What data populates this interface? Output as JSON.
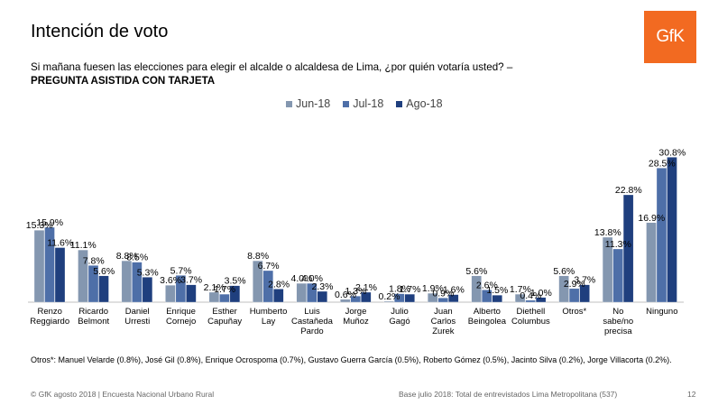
{
  "header": {
    "title": "Intención de voto",
    "logo_text": "GfK",
    "question": "Si mañana fuesen las elecciones para elegir el alcalde o alcaldesa de Lima, ¿por quién votaría usted? –",
    "question_bold": "PREGUNTA ASISTIDA CON TARJETA"
  },
  "chart_data": {
    "type": "bar",
    "title": "",
    "xlabel": "",
    "ylabel": "",
    "ylim": [
      0,
      32
    ],
    "legend_position": "top-center",
    "categories": [
      [
        "Renzo",
        "Reggiardo"
      ],
      [
        "Ricardo",
        "Belmont"
      ],
      [
        "Daniel",
        "Urresti"
      ],
      [
        "Enrique",
        "Cornejo"
      ],
      [
        "Esther",
        "Capuñay"
      ],
      [
        "Humberto",
        "Lay"
      ],
      [
        "Luis",
        "Castañeda",
        "Pardo"
      ],
      [
        "Jorge",
        "Muñoz"
      ],
      [
        "Julio",
        "Gagó"
      ],
      [
        "Juan",
        "Carlos",
        "Zurek"
      ],
      [
        "Alberto",
        "Beingolea"
      ],
      [
        "Diethell",
        "Columbus"
      ],
      [
        "Otros*"
      ],
      [
        "No",
        "sabe/no",
        "precisa"
      ],
      [
        "Ninguno"
      ]
    ],
    "series": [
      {
        "name": "Jun-18",
        "color": "#8497b0",
        "values": [
          15.3,
          11.1,
          8.8,
          3.6,
          2.1,
          8.8,
          4.0,
          0.6,
          0.2,
          1.9,
          5.6,
          1.7,
          5.6,
          13.8,
          16.9
        ],
        "labels": [
          "15.3%",
          "11.1%",
          "8.8%",
          "3.6%",
          "2.1%",
          "8.8%",
          "4.0%",
          "0.6%",
          "0.2%",
          "1.9%",
          "5.6%",
          "1.7%",
          "5.6%",
          "13.8%",
          "16.9%"
        ]
      },
      {
        "name": "Jul-18",
        "color": "#4e6fa8",
        "values": [
          15.9,
          7.8,
          8.5,
          5.7,
          1.7,
          6.7,
          4.0,
          1.3,
          1.8,
          0.9,
          2.6,
          0.4,
          2.9,
          11.3,
          28.5
        ],
        "labels": [
          "15.9%",
          "7.8%",
          "8.5%",
          "5.7%",
          "1.7%",
          "6.7%",
          "4.0%",
          "1.3%",
          "1.8%",
          "0.9%",
          "2.6%",
          "0.4%",
          "2.9%",
          "11.3%",
          "28.5%"
        ]
      },
      {
        "name": "Ago-18",
        "color": "#1f3f7e",
        "values": [
          11.6,
          5.6,
          5.3,
          3.7,
          3.5,
          2.8,
          2.3,
          2.1,
          1.7,
          1.6,
          1.5,
          1.0,
          3.7,
          22.8,
          30.8
        ],
        "labels": [
          "11.6%",
          "5.6%",
          "5.3%",
          "3.7%",
          "3.5%",
          "2.8%",
          "2.3%",
          "2.1%",
          "1.7%",
          "1.6%",
          "1.5%",
          "1.0%",
          "3.7%",
          "22.8%",
          "30.8%"
        ]
      }
    ]
  },
  "footnote": "Otros*: Manuel Velarde (0.8%), José Gil (0.8%), Enrique Ocrospoma (0.7%), Gustavo Guerra García (0.5%), Roberto Gómez (0.5%), Jacinto Silva (0.2%), Jorge Villacorta (0.2%).",
  "footer": {
    "left": "© GfK agosto 2018 | Encuesta Nacional Urbano Rural",
    "middle": "Base julio 2018: Total de entrevistados Lima Metropolitana (537)",
    "page": "12"
  }
}
